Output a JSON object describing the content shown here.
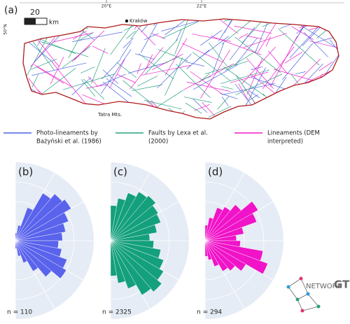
{
  "map": {
    "panel_label": "(a)",
    "scale_label": "20",
    "scale_unit": "km",
    "city": "Kraków",
    "lon_labels": [
      "20°E",
      "22°E"
    ],
    "lat_label": "50°N",
    "region_label": "Tatra Mts."
  },
  "legend": [
    {
      "label_lines": [
        "Photo-lineaments by",
        "Bażyński et al. (1986)"
      ],
      "color": "#4b63e0"
    },
    {
      "label_lines": [
        "Faults by Lexa et al.",
        "(2000)"
      ],
      "color": "#27a07e"
    },
    {
      "label_lines": [
        "Lineaments (DEM",
        "interpreted)"
      ],
      "color": "#ee1fc8"
    }
  ],
  "roses": [
    {
      "panel_label": "(b)",
      "n_label": "n = 110",
      "color": "#5a63ec",
      "petals": [
        0.1,
        0.2,
        0.45,
        0.7,
        0.78,
        0.82,
        0.72,
        0.65,
        0.6,
        0.55,
        0.6,
        0.7,
        0.75,
        0.6,
        0.45,
        0.3,
        0.2,
        0.1
      ]
    },
    {
      "panel_label": "(c)",
      "n_label": "n = 2325",
      "color": "#14a07c",
      "petals": [
        0.45,
        0.55,
        0.65,
        0.72,
        0.75,
        0.7,
        0.68,
        0.6,
        0.5,
        0.55,
        0.65,
        0.72,
        0.78,
        0.85,
        0.8,
        0.65,
        0.55,
        0.45
      ]
    },
    {
      "panel_label": "(d)",
      "n_label": "n = 294",
      "color": "#f013c8",
      "petals": [
        0.2,
        0.3,
        0.45,
        0.5,
        0.6,
        0.78,
        0.7,
        0.5,
        0.4,
        0.45,
        0.75,
        0.85,
        0.6,
        0.5,
        0.45,
        0.35,
        0.25,
        0.2
      ]
    }
  ],
  "logo": {
    "text_a": "NETWORK",
    "text_b": "GT"
  }
}
